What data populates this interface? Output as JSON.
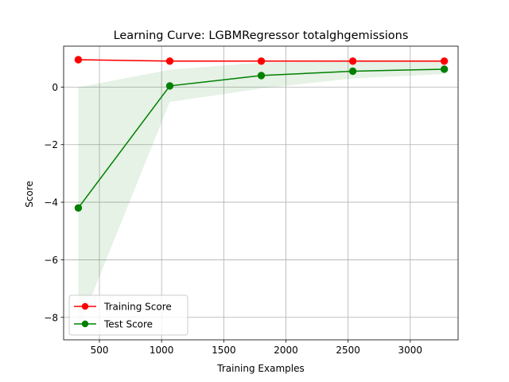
{
  "chart_data": {
    "type": "line",
    "title": "Learning Curve: LGBMRegressor totalghgemissions",
    "xlabel": "Training Examples",
    "ylabel": "Score",
    "xlim": [
      212,
      3385
    ],
    "ylim": [
      -8.78,
      1.42
    ],
    "xticks": [
      500,
      1000,
      1500,
      2000,
      2500,
      3000
    ],
    "yticks": [
      -8,
      -6,
      -4,
      -2,
      0
    ],
    "grid": true,
    "legend": "lower-left",
    "series": [
      {
        "name": "Training Score",
        "color": "#ff0000",
        "x": [
          330,
          1066,
          1802,
          2538,
          3274
        ],
        "y": [
          0.95,
          0.9,
          0.9,
          0.9,
          0.9
        ],
        "band_lower": [
          0.92,
          0.87,
          0.87,
          0.87,
          0.87
        ],
        "band_upper": [
          0.98,
          0.93,
          0.93,
          0.93,
          0.93
        ]
      },
      {
        "name": "Test Score",
        "color": "#008000",
        "band_color": "#008000",
        "x": [
          330,
          1066,
          1802,
          2538,
          3274
        ],
        "y": [
          -4.2,
          0.04,
          0.4,
          0.55,
          0.62
        ],
        "band_lower": [
          -8.4,
          -0.52,
          -0.05,
          0.3,
          0.45
        ],
        "band_upper": [
          -0.01,
          0.6,
          0.85,
          0.88,
          0.88
        ]
      }
    ]
  }
}
